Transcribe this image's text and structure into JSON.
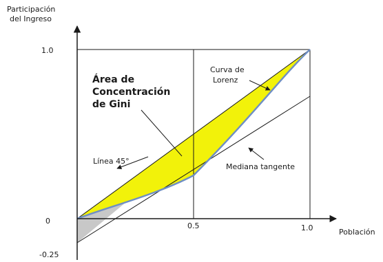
{
  "labels": {
    "y_axis_line1": "Participación",
    "y_axis_line2": "del Ingreso",
    "x_axis": "Población",
    "y_tick_top": "1.0",
    "y_tick_zero": "0",
    "y_tick_neg": "-0.25",
    "x_tick_mid": "0.5",
    "x_tick_end": "1.0",
    "area_line1": "Área de",
    "area_line2": "Concentración",
    "area_line3": "de Gini",
    "lorenz_line1": "Curva de",
    "lorenz_line2": "Lorenz",
    "line45": "Línea 45°",
    "tangent": "Mediana tangente"
  },
  "colors": {
    "gini_area": "#f2f20a",
    "gray_area": "#c8c8c8",
    "lorenz_curve": "#6f8fc4",
    "lines": "#1a1a1a"
  }
}
